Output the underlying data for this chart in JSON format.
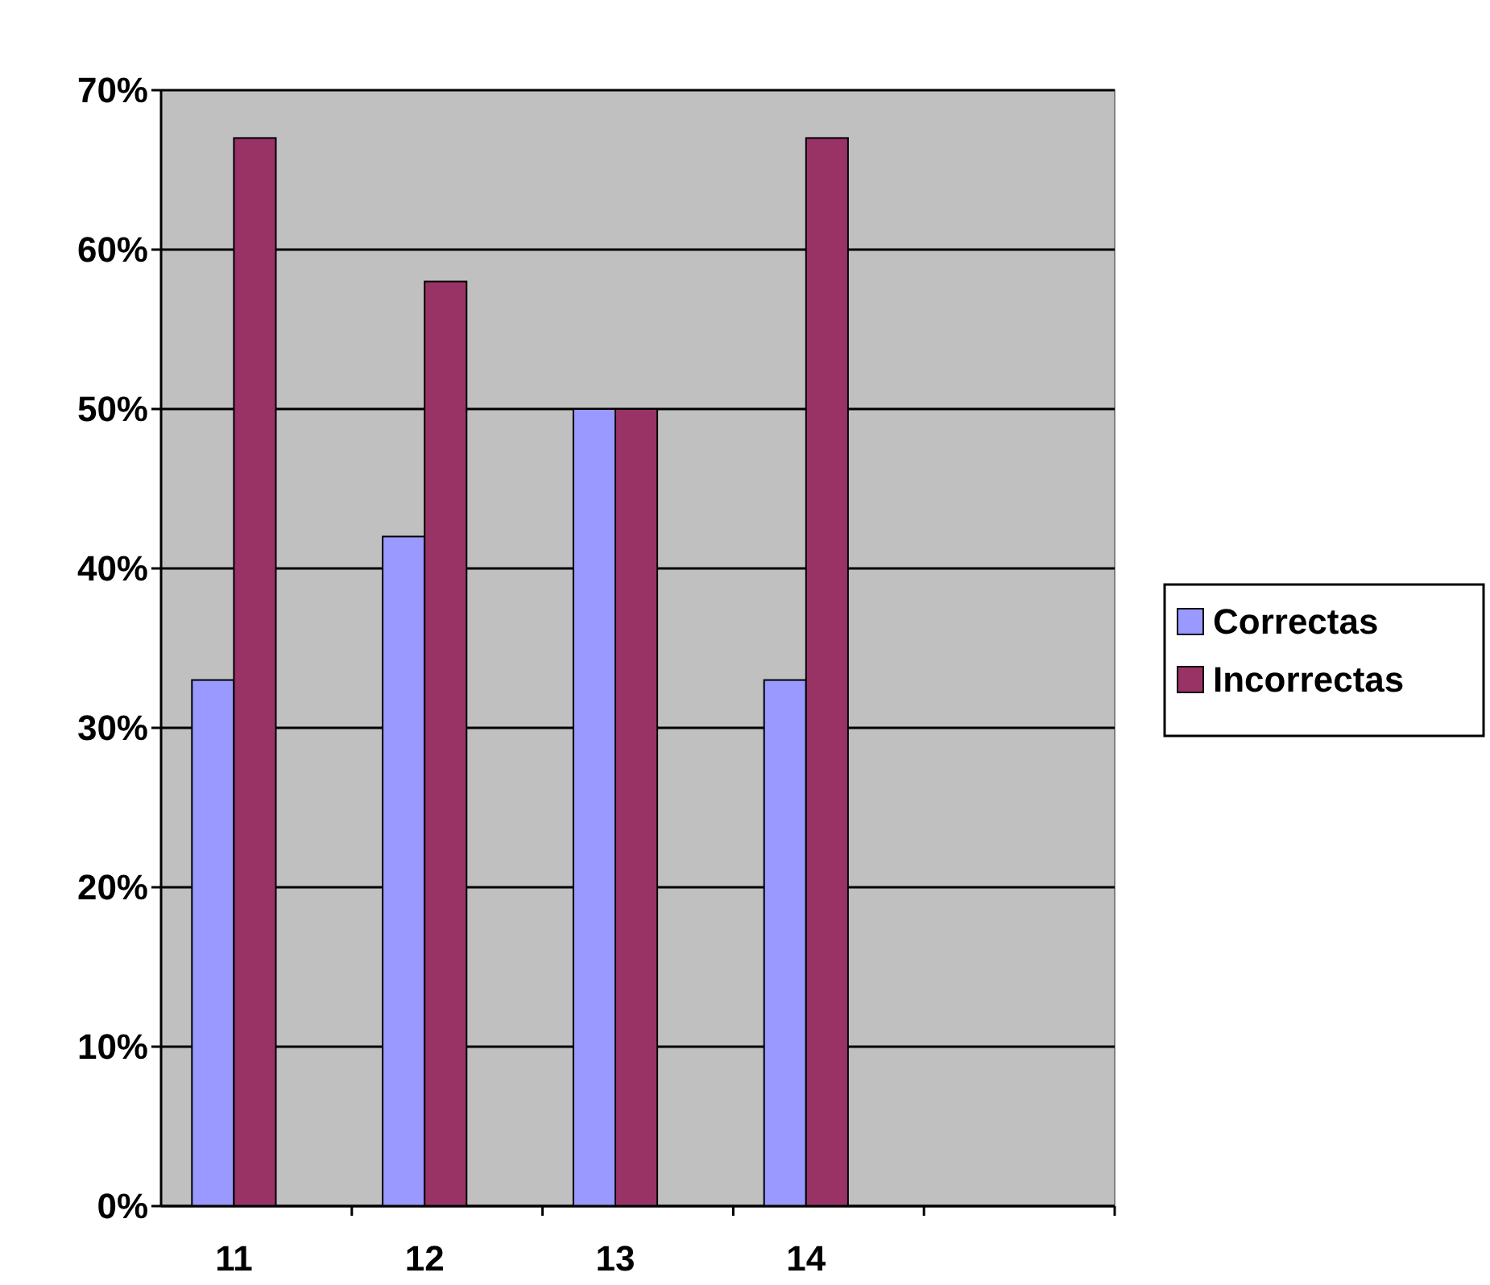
{
  "chart_data": {
    "type": "bar",
    "categories": [
      "11",
      "12",
      "13",
      "14",
      null
    ],
    "series": [
      {
        "name": "Correctas",
        "color": "#9999ff",
        "values": [
          33,
          42,
          50,
          33,
          null
        ]
      },
      {
        "name": "Incorrectas",
        "color": "#993366",
        "values": [
          67,
          58,
          50,
          67,
          null
        ]
      }
    ],
    "ylim": [
      0,
      70
    ],
    "yticks": [
      {
        "value": 0,
        "label": "0%"
      },
      {
        "value": 10,
        "label": "10%"
      },
      {
        "value": 20,
        "label": "20%"
      },
      {
        "value": 30,
        "label": "30%"
      },
      {
        "value": 40,
        "label": "40%"
      },
      {
        "value": 50,
        "label": "50%"
      },
      {
        "value": 60,
        "label": "60%"
      },
      {
        "value": 70,
        "label": "70%"
      }
    ],
    "grid": "y",
    "legend": "right"
  }
}
